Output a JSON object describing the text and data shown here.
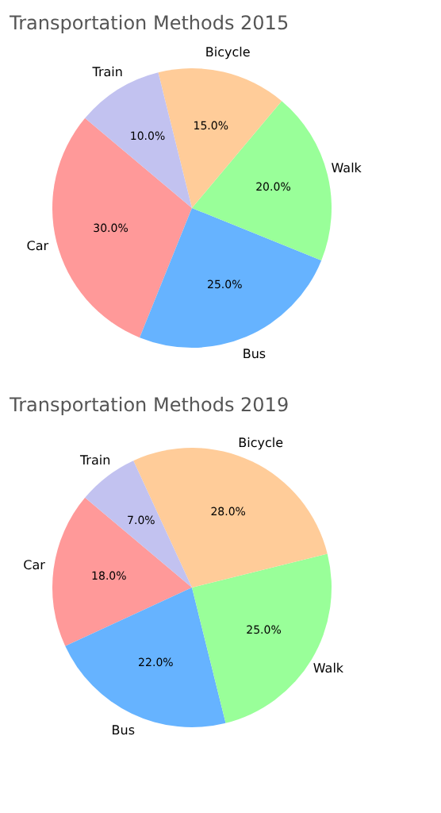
{
  "chart_data": [
    {
      "type": "pie",
      "title": "Transportation Methods 2015",
      "categories": [
        "Car",
        "Bus",
        "Walk",
        "Bicycle",
        "Train"
      ],
      "values": [
        30,
        25,
        20,
        15,
        10
      ],
      "colors": [
        "#ff9999",
        "#66b3ff",
        "#99ff99",
        "#ffcc99",
        "#c2c2f0"
      ],
      "value_labels": [
        "30.0%",
        "25.0%",
        "20.0%",
        "15.0%",
        "10.0%"
      ],
      "legend": false
    },
    {
      "type": "pie",
      "title": "Transportation Methods 2019",
      "categories": [
        "Car",
        "Bus",
        "Walk",
        "Bicycle",
        "Train"
      ],
      "values": [
        18,
        22,
        25,
        28,
        7
      ],
      "colors": [
        "#ff9999",
        "#66b3ff",
        "#99ff99",
        "#ffcc99",
        "#c2c2f0"
      ],
      "value_labels": [
        "18.0%",
        "22.0%",
        "25.0%",
        "28.0%",
        "7.0%"
      ],
      "legend": false
    }
  ]
}
